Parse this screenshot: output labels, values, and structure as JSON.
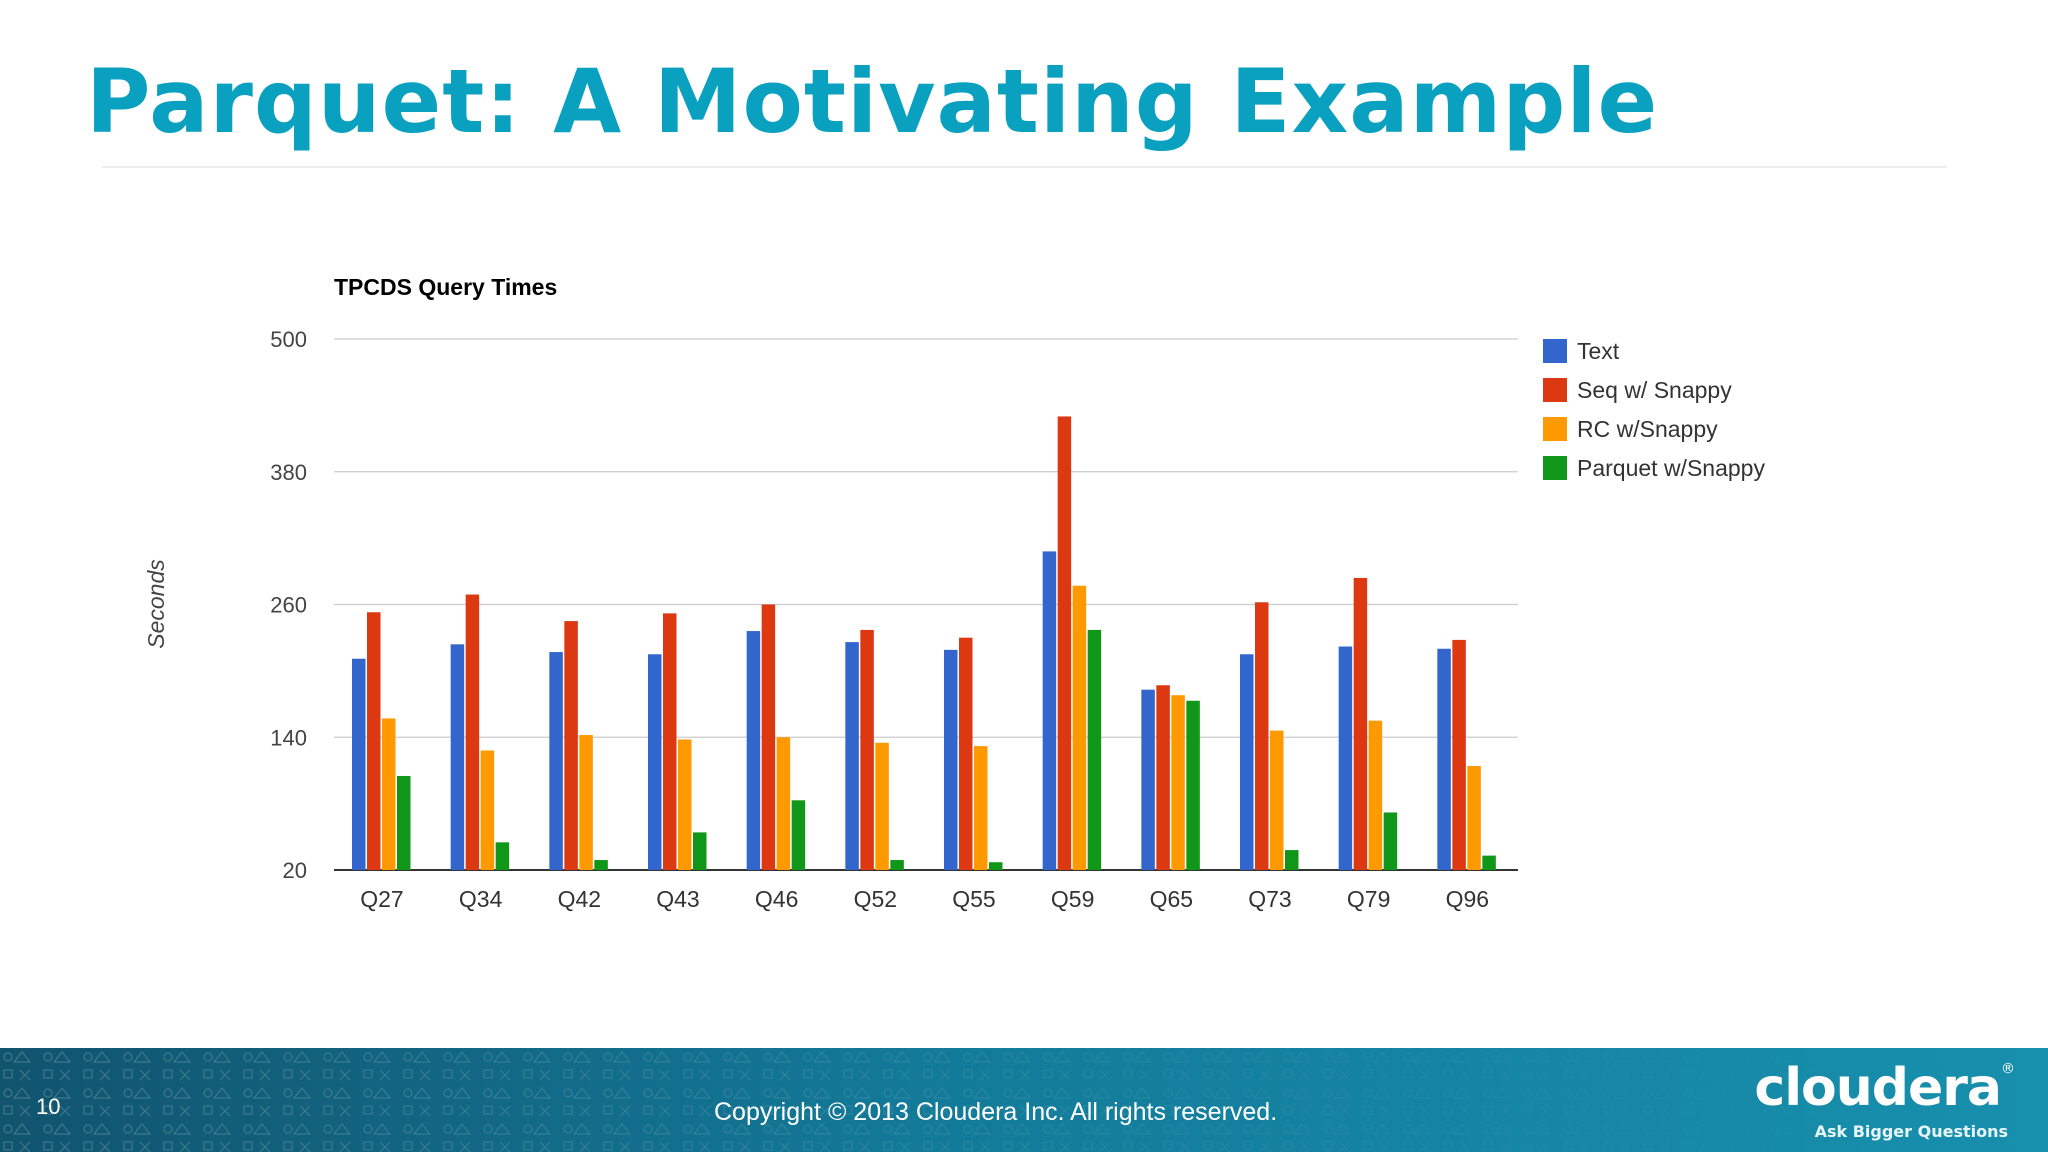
{
  "slide": {
    "title": "Parquet: A Motivating Example",
    "page_number": "10",
    "copyright": "Copyright © 2013 Cloudera Inc. All rights reserved.",
    "brand": "cloudera",
    "brand_mark": "®",
    "tagline": "Ask Bigger Questions"
  },
  "colors": {
    "title": "#0aa0c0",
    "footer": "#137a99",
    "series": [
      "#3366cc",
      "#dc3912",
      "#ff9900",
      "#109618"
    ]
  },
  "chart_data": {
    "type": "bar",
    "title": "TPCDS Query Times",
    "xlabel": "",
    "ylabel": "Seconds",
    "ylim": [
      20,
      500
    ],
    "yticks": [
      20,
      140,
      260,
      380,
      500
    ],
    "grid": true,
    "legend_position": "right",
    "categories": [
      "Q27",
      "Q34",
      "Q42",
      "Q43",
      "Q46",
      "Q52",
      "Q55",
      "Q59",
      "Q65",
      "Q73",
      "Q79",
      "Q96"
    ],
    "series": [
      {
        "name": "Text",
        "values": [
          211,
          224,
          217,
          215,
          236,
          226,
          219,
          308,
          183,
          215,
          222,
          220
        ]
      },
      {
        "name": "Seq w/ Snappy",
        "values": [
          253,
          269,
          245,
          252,
          260,
          237,
          230,
          430,
          187,
          262,
          284,
          228
        ]
      },
      {
        "name": "RC w/Snappy",
        "values": [
          157,
          128,
          142,
          138,
          140,
          135,
          132,
          277,
          178,
          146,
          155,
          114
        ]
      },
      {
        "name": "Parquet w/Snappy",
        "values": [
          105,
          45,
          29,
          54,
          83,
          29,
          27,
          237,
          173,
          38,
          72,
          33
        ]
      }
    ]
  }
}
